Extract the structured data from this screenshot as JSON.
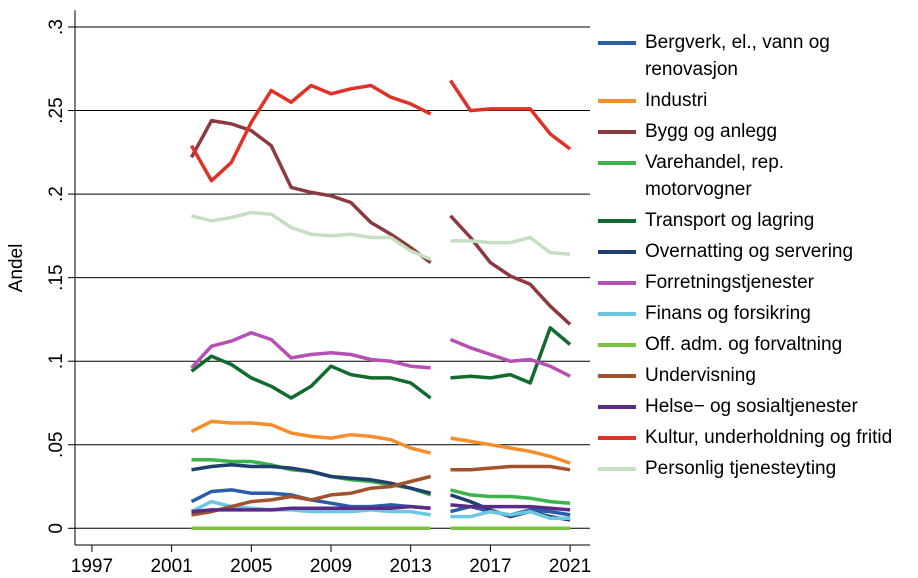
{
  "chart_data": {
    "type": "line",
    "y_label": "Andel",
    "x": [
      2002,
      2003,
      2004,
      2005,
      2006,
      2007,
      2008,
      2009,
      2010,
      2011,
      2012,
      2013,
      2014,
      null,
      2015,
      2016,
      2017,
      2018,
      2019,
      2020,
      2021
    ],
    "xlim": [
      1996.15,
      2022
    ],
    "xticks": [
      1997,
      2001,
      2005,
      2009,
      2013,
      2017,
      2021
    ],
    "ylim": [
      -0.01,
      0.31
    ],
    "yticks": [
      0,
      {
        "value": 0.05,
        "label": ".05"
      },
      {
        "value": 0.1,
        "label": ".1"
      },
      {
        "value": 0.15,
        "label": ".15"
      },
      {
        "value": 0.2,
        "label": ".2"
      },
      {
        "value": 0.25,
        "label": ".25"
      },
      {
        "value": 0.3,
        "label": ".3"
      }
    ],
    "grid": true,
    "legend": "right",
    "series": [
      {
        "name": "Bergverk, el., vann og renovasjon",
        "color": "#2a5caa",
        "values": [
          0.016,
          0.022,
          0.023,
          0.021,
          0.021,
          0.02,
          0.017,
          0.015,
          0.013,
          0.013,
          0.014,
          0.013,
          0.012,
          null,
          0.01,
          0.013,
          0.01,
          0.008,
          0.011,
          0.01,
          0.008
        ]
      },
      {
        "name": "Industri",
        "color": "#f28e2b",
        "values": [
          0.058,
          0.064,
          0.063,
          0.063,
          0.062,
          0.057,
          0.055,
          0.054,
          0.056,
          0.055,
          0.053,
          0.048,
          0.045,
          null,
          0.054,
          0.052,
          0.05,
          0.048,
          0.046,
          0.043,
          0.039
        ]
      },
      {
        "name": "Bygg og anlegg",
        "color": "#8b3a3f",
        "values": [
          0.222,
          0.244,
          0.242,
          0.238,
          0.229,
          0.204,
          0.201,
          0.199,
          0.195,
          0.183,
          0.176,
          0.168,
          0.159,
          null,
          0.187,
          0.174,
          0.159,
          0.151,
          0.146,
          0.133,
          0.122
        ]
      },
      {
        "name": "Varehandel, rep. motorvogner",
        "color": "#3cb44b",
        "values": [
          0.041,
          0.041,
          0.04,
          0.04,
          0.038,
          0.035,
          0.034,
          0.031,
          0.029,
          0.028,
          0.026,
          0.024,
          0.02,
          null,
          0.023,
          0.02,
          0.019,
          0.019,
          0.018,
          0.016,
          0.015
        ]
      },
      {
        "name": "Transport og lagring",
        "color": "#126b2e",
        "values": [
          0.094,
          0.103,
          0.098,
          0.09,
          0.085,
          0.078,
          0.085,
          0.097,
          0.092,
          0.09,
          0.09,
          0.087,
          0.078,
          null,
          0.09,
          0.091,
          0.09,
          0.092,
          0.087,
          0.12,
          0.11
        ]
      },
      {
        "name": "Overnatting og servering",
        "color": "#1f3f6e",
        "values": [
          0.035,
          0.037,
          0.038,
          0.037,
          0.037,
          0.036,
          0.034,
          0.031,
          0.03,
          0.029,
          0.027,
          0.024,
          0.021,
          null,
          0.02,
          0.016,
          0.011,
          0.007,
          0.01,
          0.007,
          0.005
        ]
      },
      {
        "name": "Forretningstjenester",
        "color": "#b550b5",
        "values": [
          0.096,
          0.109,
          0.112,
          0.117,
          0.113,
          0.102,
          0.104,
          0.105,
          0.104,
          0.101,
          0.1,
          0.097,
          0.096,
          null,
          0.113,
          0.108,
          0.104,
          0.1,
          0.101,
          0.097,
          0.091
        ]
      },
      {
        "name": "Finans og forsikring",
        "color": "#6cc8e0",
        "values": [
          0.01,
          0.016,
          0.013,
          0.012,
          0.011,
          0.011,
          0.01,
          0.01,
          0.01,
          0.011,
          0.01,
          0.01,
          0.008,
          null,
          0.007,
          0.007,
          0.01,
          0.008,
          0.01,
          0.006,
          0.006
        ]
      },
      {
        "name": "Off. adm. og forvaltning",
        "color": "#7cc243",
        "values": [
          0,
          0,
          0,
          0,
          0,
          0,
          0,
          0,
          0,
          0,
          0,
          0,
          0,
          null,
          0,
          0,
          0,
          0,
          0,
          0,
          0
        ]
      },
      {
        "name": "Undervisning",
        "color": "#a0522d",
        "values": [
          0.008,
          0.01,
          0.013,
          0.016,
          0.017,
          0.019,
          0.017,
          0.02,
          0.021,
          0.024,
          0.025,
          0.028,
          0.031,
          null,
          0.035,
          0.035,
          0.036,
          0.037,
          0.037,
          0.037,
          0.035
        ]
      },
      {
        "name": "Helse− og sosialtjenester",
        "color": "#5b2a86",
        "values": [
          0.01,
          0.011,
          0.011,
          0.011,
          0.011,
          0.012,
          0.012,
          0.012,
          0.012,
          0.012,
          0.012,
          0.013,
          0.012,
          null,
          0.014,
          0.013,
          0.013,
          0.013,
          0.013,
          0.012,
          0.011
        ]
      },
      {
        "name": "Kultur, underholdning og fritid",
        "color": "#e03127",
        "values": [
          0.229,
          0.208,
          0.219,
          0.243,
          0.262,
          0.255,
          0.265,
          0.26,
          0.263,
          0.265,
          0.258,
          0.254,
          0.248,
          null,
          0.268,
          0.25,
          0.251,
          0.251,
          0.251,
          0.236,
          0.227
        ]
      },
      {
        "name": "Personlig tjenesteyting",
        "color": "#c5dfc1",
        "values": [
          0.187,
          0.184,
          0.186,
          0.189,
          0.188,
          0.18,
          0.176,
          0.175,
          0.176,
          0.174,
          0.174,
          0.166,
          0.161,
          null,
          0.172,
          0.172,
          0.171,
          0.171,
          0.174,
          0.165,
          0.164
        ]
      }
    ]
  }
}
